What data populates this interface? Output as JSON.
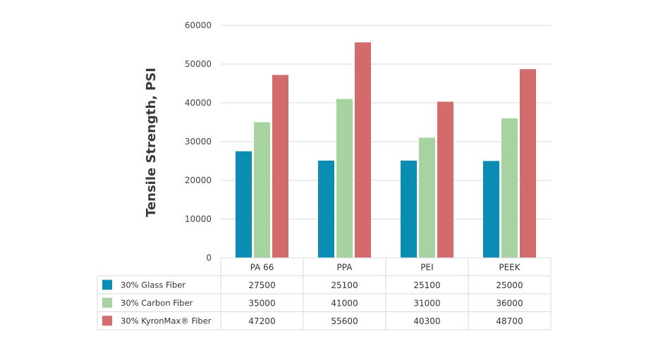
{
  "chart_data": {
    "type": "bar",
    "ylabel": "Tensile Strength, PSI",
    "xlabel": "",
    "ylim": [
      0,
      60000
    ],
    "yticks": [
      0,
      10000,
      20000,
      30000,
      40000,
      50000,
      60000
    ],
    "grid": true,
    "legend": "data-table-below",
    "categories": [
      "PA 66",
      "PPA",
      "PEI",
      "PEEK"
    ],
    "series": [
      {
        "name": "30% Glass Fiber",
        "color": "#0a8cb3",
        "values": [
          27500,
          25100,
          25100,
          25000
        ],
        "labels": [
          "27500",
          "25100",
          "25100",
          "25000"
        ]
      },
      {
        "name": "30% Carbon Fiber",
        "color": "#a6d39f",
        "values": [
          35000,
          41000,
          31000,
          36000
        ],
        "labels": [
          "35000",
          "41000",
          "31000",
          "36000"
        ]
      },
      {
        "name": "30% KyronMax® Fiber",
        "color": "#d36b6d",
        "values": [
          47200,
          55600,
          40300,
          48700
        ],
        "labels": [
          "47200",
          "55600",
          "40300",
          "48700"
        ]
      }
    ]
  }
}
